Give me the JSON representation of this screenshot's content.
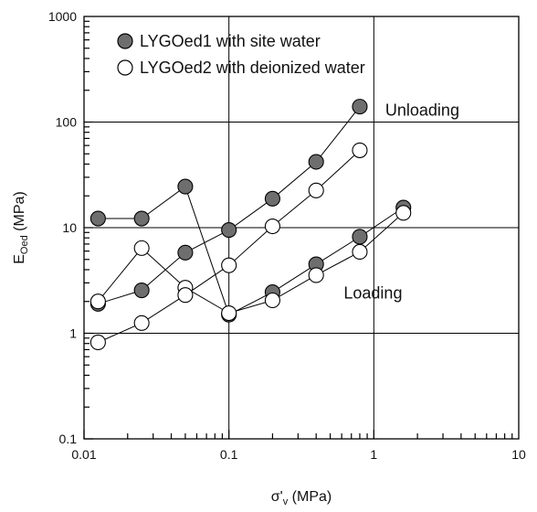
{
  "chart_data": {
    "type": "scatter",
    "x_scale": "log",
    "y_scale": "log",
    "xlim": [
      0.01,
      10
    ],
    "ylim": [
      0.1,
      1000
    ],
    "xlabel_main": "σ'",
    "xlabel_sub": "v",
    "xlabel_tail": " (MPa)",
    "ylabel_main": "E",
    "ylabel_sub": "Oed",
    "ylabel_tail": " (MPa)",
    "x_ticks": [
      {
        "value": 0.01,
        "label": "0.01"
      },
      {
        "value": 0.1,
        "label": "0.1"
      },
      {
        "value": 1,
        "label": "1"
      },
      {
        "value": 10,
        "label": "10"
      }
    ],
    "y_ticks": [
      {
        "value": 0.1,
        "label": "0.1"
      },
      {
        "value": 1,
        "label": "1"
      },
      {
        "value": 10,
        "label": "10"
      },
      {
        "value": 100,
        "label": "100"
      },
      {
        "value": 1000,
        "label": "1000"
      }
    ],
    "grid": true,
    "legend_position": "top-left",
    "series": [
      {
        "name": "LYGOed1 with site water",
        "marker": "filled-circle",
        "color": "#6e6e6e",
        "segments": [
          [
            [
              0.0125,
              12.2
            ],
            [
              0.025,
              12.2
            ],
            [
              0.05,
              24.5
            ],
            [
              0.1,
              1.5
            ]
          ],
          [
            [
              0.0125,
              1.9
            ],
            [
              0.025,
              2.55
            ],
            [
              0.05,
              5.8
            ],
            [
              0.1,
              9.5
            ],
            [
              0.2,
              18.8
            ],
            [
              0.4,
              42
            ],
            [
              0.8,
              140
            ]
          ],
          [
            [
              0.1,
              1.5
            ],
            [
              0.2,
              2.45
            ],
            [
              0.4,
              4.5
            ],
            [
              0.8,
              8.2
            ],
            [
              1.6,
              15.5
            ]
          ]
        ]
      },
      {
        "name": "LYGOed2 with deionized water",
        "marker": "open-circle",
        "color": "#ffffff",
        "segments": [
          [
            [
              0.0125,
              2.0
            ],
            [
              0.025,
              6.4
            ],
            [
              0.05,
              2.7
            ],
            [
              0.1,
              1.55
            ]
          ],
          [
            [
              0.0125,
              0.82
            ],
            [
              0.025,
              1.25
            ],
            [
              0.05,
              2.3
            ],
            [
              0.1,
              4.4
            ],
            [
              0.2,
              10.3
            ],
            [
              0.4,
              22.5
            ],
            [
              0.8,
              54
            ]
          ],
          [
            [
              0.1,
              1.55
            ],
            [
              0.2,
              2.05
            ],
            [
              0.4,
              3.55
            ],
            [
              0.8,
              5.9
            ],
            [
              1.6,
              13.8
            ]
          ]
        ]
      }
    ],
    "annotations": [
      {
        "text": "Unloading",
        "x": 1.2,
        "y": 130
      },
      {
        "text": "Loading",
        "x": 0.62,
        "y": 2.4
      }
    ]
  }
}
